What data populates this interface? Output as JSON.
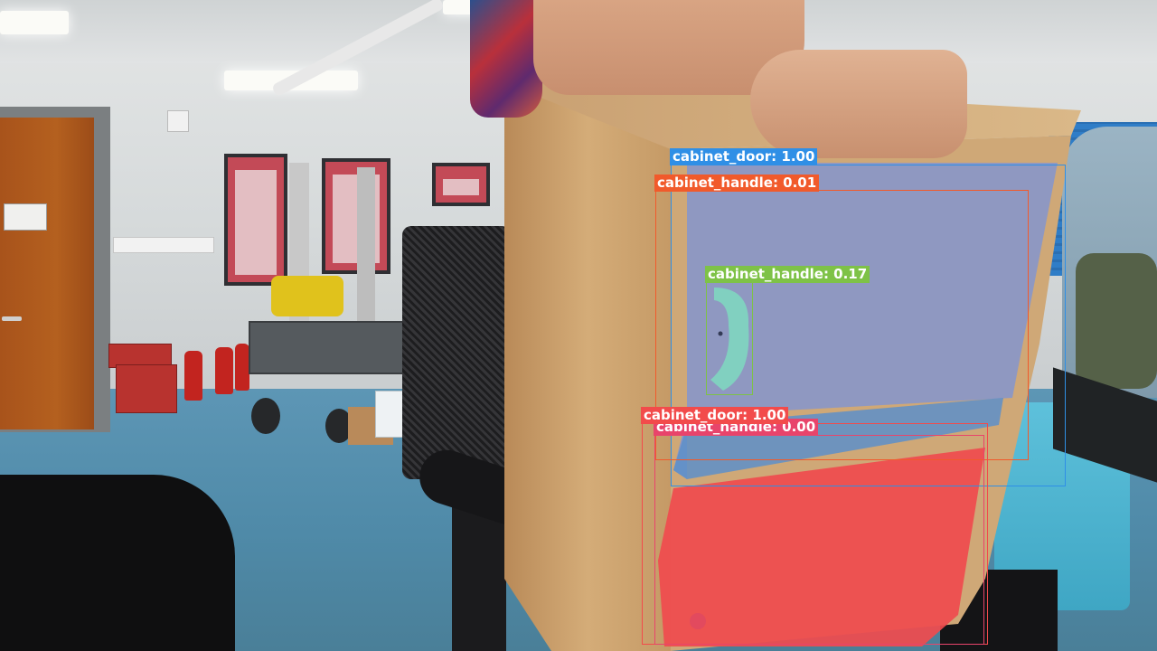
{
  "detections": [
    {
      "label": "cabinet_door",
      "score": "1.00",
      "text": "cabinet_door: 1.00",
      "color": "#2f8fe6"
    },
    {
      "label": "cabinet_handle",
      "score": "0.01",
      "text": "cabinet_handle: 0.01",
      "color": "#f15a2b"
    },
    {
      "label": "cabinet_handle",
      "score": "0.17",
      "text": "cabinet_handle: 0.17",
      "color": "#7ec247"
    },
    {
      "label": "cabinet_door",
      "score": "1.00",
      "text": "cabinet_door: 1.00",
      "color": "#f24b4b"
    },
    {
      "label": "cabinet_handle",
      "score": "0.00",
      "text": "cabinet_handle: 0.00",
      "color": "#e8446b"
    }
  ]
}
